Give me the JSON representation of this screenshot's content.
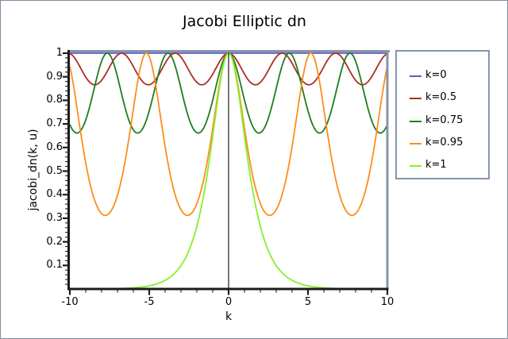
{
  "window": {
    "background": "#ffffff",
    "border_color": "#7e8ca2"
  },
  "chart_data": {
    "type": "line",
    "title": "Jacobi Elliptic dn",
    "xlabel": "k",
    "ylabel": "jacobi_dn(k, u)",
    "xlim": [
      -10,
      10
    ],
    "ylim": [
      0,
      1.0135
    ],
    "grid": false,
    "legend_position": "right",
    "frame_color": "#8695aa",
    "axis_color": "#1c1c1c",
    "x_major_ticks": [
      -10,
      -5,
      0,
      5,
      10
    ],
    "x_tick_labels": [
      "-10",
      "-5",
      "0",
      "5",
      "10"
    ],
    "x_minor_tick_step": 1,
    "y_major_ticks": [
      0.1,
      0.2,
      0.3,
      0.4,
      0.5,
      0.6,
      0.7,
      0.8,
      0.9,
      1
    ],
    "y_tick_labels": [
      "0.1",
      "0.2",
      "0.3",
      "0.4",
      "0.5",
      "0.6",
      "0.7",
      "0.8",
      "0.9",
      "1"
    ],
    "y_minor_tick_step": 0.02,
    "zero_axis_line_x": 0,
    "function": "jacobi_dn(k, u) sampled for u in [-10, 10]",
    "series": [
      {
        "name": "k=0",
        "k": 0,
        "color": "#5f5fc8",
        "min": 1.0,
        "max": 1.0
      },
      {
        "name": "k=0.5",
        "k": 0.5,
        "color": "#aa2e24",
        "min": 0.866,
        "max": 1.0,
        "period": 3.37
      },
      {
        "name": "k=0.75",
        "k": 0.75,
        "color": "#1e7d1e",
        "min": 0.661,
        "max": 1.0,
        "period": 3.82
      },
      {
        "name": "k=0.95",
        "k": 0.95,
        "color": "#ff8c19",
        "min": 0.312,
        "max": 1.0,
        "period": 5.18
      },
      {
        "name": "k=1",
        "k": 1,
        "color": "#85f02d",
        "min": 0.0,
        "max": 1.0
      }
    ]
  }
}
